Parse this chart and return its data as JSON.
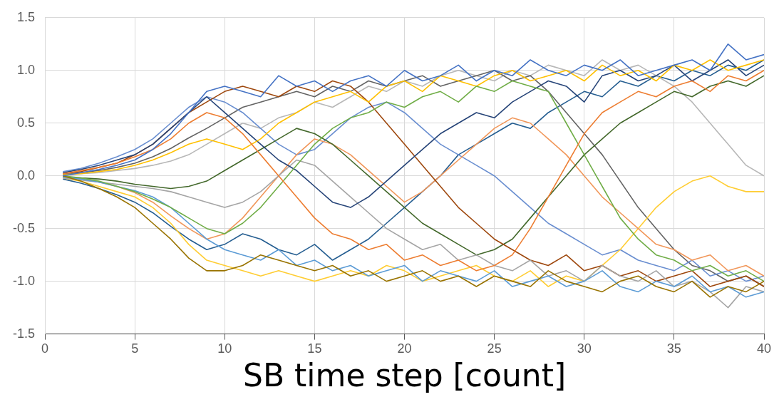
{
  "chart_data": {
    "type": "line",
    "xlabel": "SB time step [count]",
    "x": [
      1,
      2,
      3,
      4,
      5,
      6,
      7,
      8,
      9,
      10,
      11,
      12,
      13,
      14,
      15,
      16,
      17,
      18,
      19,
      20,
      21,
      22,
      23,
      24,
      25,
      26,
      27,
      28,
      29,
      30,
      31,
      32,
      33,
      34,
      35,
      36,
      37,
      38,
      39,
      40
    ],
    "xlim": [
      0,
      40
    ],
    "xticks": [
      0,
      5,
      10,
      15,
      20,
      25,
      30,
      35,
      40
    ],
    "ylim": [
      -1.5,
      1.5
    ],
    "yticks": [
      {
        "value": -1.5,
        "label": "-1.5"
      },
      {
        "value": -1,
        "label": "-1.0"
      },
      {
        "value": -0.5,
        "label": "-0.5"
      },
      {
        "value": 0,
        "label": "0.0"
      },
      {
        "value": 0.5,
        "label": "0.5"
      },
      {
        "value": 1,
        "label": "1.0"
      },
      {
        "value": 1.5,
        "label": "1.5"
      }
    ],
    "grid": true,
    "marker": "none",
    "line_style": "solid",
    "series": [
      {
        "color": "#4472c4",
        "values": [
          0,
          0.03,
          0.06,
          0.1,
          0.15,
          0.25,
          0.4,
          0.6,
          0.8,
          0.85,
          0.8,
          0.75,
          0.95,
          0.85,
          0.9,
          0.8,
          0.9,
          0.95,
          0.85,
          1.0,
          0.9,
          0.95,
          1.05,
          0.9,
          1.0,
          0.95,
          1.1,
          1.0,
          0.95,
          1.05,
          1.0,
          1.1,
          0.95,
          1.0,
          1.05,
          1.1,
          1.0,
          1.25,
          1.1,
          1.15
        ]
      },
      {
        "color": "#997300",
        "values": [
          0,
          -0.05,
          -0.12,
          -0.2,
          -0.3,
          -0.45,
          -0.6,
          -0.78,
          -0.9,
          -0.9,
          -0.85,
          -0.75,
          -0.8,
          -0.85,
          -0.9,
          -0.85,
          -0.95,
          -0.9,
          -1.0,
          -0.95,
          -0.9,
          -1.0,
          -0.95,
          -1.05,
          -0.95,
          -1.0,
          -1.05,
          -0.9,
          -1.0,
          -1.05,
          -1.1,
          -1.0,
          -0.95,
          -1.05,
          -1.1,
          -1.0,
          -1.15,
          -1.05,
          -1.1,
          -1.0
        ]
      },
      {
        "color": "#ed7d31",
        "values": [
          0.02,
          0.05,
          0.08,
          0.12,
          0.18,
          0.25,
          0.35,
          0.5,
          0.6,
          0.55,
          0.4,
          0.2,
          0.0,
          -0.2,
          -0.4,
          -0.55,
          -0.6,
          -0.7,
          -0.65,
          -0.8,
          -0.75,
          -0.85,
          -0.8,
          -0.9,
          -0.85,
          -0.75,
          -0.5,
          -0.2,
          0.1,
          0.4,
          0.6,
          0.7,
          0.8,
          0.75,
          0.85,
          0.9,
          0.8,
          0.95,
          0.9,
          1.0
        ]
      },
      {
        "color": "#70ad47",
        "values": [
          0,
          -0.02,
          -0.05,
          -0.1,
          -0.15,
          -0.22,
          -0.3,
          -0.4,
          -0.5,
          -0.55,
          -0.45,
          -0.3,
          -0.1,
          0.1,
          0.3,
          0.45,
          0.55,
          0.6,
          0.7,
          0.65,
          0.75,
          0.8,
          0.7,
          0.85,
          0.8,
          0.9,
          0.85,
          0.8,
          0.5,
          0.2,
          -0.1,
          -0.4,
          -0.6,
          -0.75,
          -0.8,
          -0.9,
          -0.85,
          -0.95,
          -0.9,
          -1.0
        ]
      },
      {
        "color": "#ffc000",
        "values": [
          0.01,
          0.02,
          0.04,
          0.06,
          0.1,
          0.15,
          0.22,
          0.3,
          0.35,
          0.3,
          0.25,
          0.35,
          0.5,
          0.6,
          0.7,
          0.75,
          0.8,
          0.7,
          0.85,
          0.9,
          0.8,
          0.95,
          0.9,
          0.85,
          0.95,
          1.0,
          0.9,
          0.95,
          1.0,
          0.9,
          1.05,
          0.95,
          1.0,
          0.9,
          1.05,
          1.0,
          1.1,
          1.0,
          1.05,
          1.1
        ]
      },
      {
        "color": "#5b9bd5",
        "values": [
          -0.01,
          -0.03,
          -0.06,
          -0.1,
          -0.14,
          -0.2,
          -0.3,
          -0.45,
          -0.6,
          -0.7,
          -0.75,
          -0.8,
          -0.7,
          -0.85,
          -0.8,
          -0.9,
          -0.85,
          -0.95,
          -0.9,
          -0.85,
          -1.0,
          -0.9,
          -0.95,
          -1.0,
          -0.9,
          -1.05,
          -1.0,
          -0.95,
          -1.05,
          -1.0,
          -0.9,
          -1.05,
          -1.1,
          -1.0,
          -1.05,
          -0.95,
          -1.1,
          -1.05,
          -1.15,
          -1.1
        ]
      },
      {
        "color": "#264478",
        "values": [
          0.03,
          0.06,
          0.1,
          0.15,
          0.2,
          0.3,
          0.45,
          0.6,
          0.75,
          0.6,
          0.45,
          0.3,
          0.15,
          0.05,
          -0.1,
          -0.25,
          -0.3,
          -0.2,
          -0.05,
          0.1,
          0.25,
          0.4,
          0.5,
          0.6,
          0.55,
          0.7,
          0.8,
          0.9,
          0.85,
          0.7,
          0.95,
          1.0,
          0.9,
          0.95,
          1.05,
          0.9,
          1.0,
          1.1,
          0.95,
          1.05
        ]
      },
      {
        "color": "#a5a5a5",
        "values": [
          -0.02,
          -0.04,
          -0.06,
          -0.08,
          -0.1,
          -0.12,
          -0.15,
          -0.2,
          -0.25,
          -0.3,
          -0.25,
          -0.15,
          0.0,
          0.15,
          0.1,
          -0.05,
          -0.2,
          -0.35,
          -0.5,
          -0.6,
          -0.7,
          -0.65,
          -0.8,
          -0.75,
          -0.85,
          -0.9,
          -0.8,
          -0.95,
          -0.9,
          -1.0,
          -0.85,
          -0.95,
          -1.0,
          -0.9,
          -1.05,
          -1.0,
          -1.1,
          -1.25,
          -1.05,
          -1.1
        ]
      },
      {
        "color": "#9e480e",
        "values": [
          0.02,
          0.04,
          0.08,
          0.12,
          0.2,
          0.3,
          0.45,
          0.6,
          0.7,
          0.8,
          0.85,
          0.8,
          0.75,
          0.85,
          0.8,
          0.9,
          0.85,
          0.7,
          0.5,
          0.3,
          0.1,
          -0.1,
          -0.3,
          -0.45,
          -0.6,
          -0.7,
          -0.8,
          -0.85,
          -0.75,
          -0.9,
          -0.85,
          -0.95,
          -0.9,
          -1.0,
          -0.95,
          -0.9,
          -1.05,
          -1.0,
          -0.95,
          -1.05
        ]
      },
      {
        "color": "#43682b",
        "values": [
          -0.01,
          -0.02,
          -0.03,
          -0.05,
          -0.08,
          -0.1,
          -0.12,
          -0.1,
          -0.05,
          0.05,
          0.15,
          0.25,
          0.35,
          0.45,
          0.4,
          0.3,
          0.15,
          0.0,
          -0.15,
          -0.3,
          -0.45,
          -0.55,
          -0.65,
          -0.75,
          -0.7,
          -0.6,
          -0.4,
          -0.2,
          0.0,
          0.2,
          0.35,
          0.5,
          0.6,
          0.7,
          0.8,
          0.75,
          0.85,
          0.9,
          0.85,
          0.95
        ]
      },
      {
        "color": "#f1975a",
        "values": [
          0,
          -0.03,
          -0.06,
          -0.1,
          -0.16,
          -0.25,
          -0.38,
          -0.5,
          -0.6,
          -0.55,
          -0.4,
          -0.2,
          0.0,
          0.2,
          0.35,
          0.3,
          0.2,
          0.05,
          -0.1,
          -0.25,
          -0.15,
          0.0,
          0.15,
          0.3,
          0.45,
          0.55,
          0.5,
          0.35,
          0.2,
          0.0,
          -0.2,
          -0.35,
          -0.5,
          -0.65,
          -0.7,
          -0.8,
          -0.75,
          -0.9,
          -0.85,
          -0.95
        ]
      },
      {
        "color": "#ffcd33",
        "values": [
          -0.02,
          -0.05,
          -0.1,
          -0.15,
          -0.2,
          -0.3,
          -0.45,
          -0.65,
          -0.8,
          -0.85,
          -0.9,
          -0.95,
          -0.9,
          -0.95,
          -1.0,
          -0.95,
          -0.9,
          -0.95,
          -0.85,
          -0.9,
          -1.0,
          -0.95,
          -0.9,
          -0.85,
          -0.95,
          -1.0,
          -0.9,
          -1.05,
          -0.95,
          -1.0,
          -0.85,
          -0.7,
          -0.5,
          -0.3,
          -0.15,
          -0.05,
          0.0,
          -0.1,
          -0.15,
          -0.15
        ]
      },
      {
        "color": "#698ed0",
        "values": [
          0.04,
          0.07,
          0.12,
          0.18,
          0.25,
          0.35,
          0.5,
          0.65,
          0.75,
          0.7,
          0.6,
          0.45,
          0.3,
          0.2,
          0.25,
          0.4,
          0.55,
          0.65,
          0.7,
          0.6,
          0.45,
          0.3,
          0.2,
          0.1,
          0.0,
          -0.15,
          -0.3,
          -0.45,
          -0.55,
          -0.65,
          -0.75,
          -0.7,
          -0.8,
          -0.85,
          -0.9,
          -0.8,
          -0.95,
          -0.9,
          -1.0,
          -0.95
        ]
      },
      {
        "color": "#636363",
        "values": [
          0.01,
          0.03,
          0.05,
          0.08,
          0.12,
          0.18,
          0.26,
          0.36,
          0.45,
          0.55,
          0.65,
          0.7,
          0.75,
          0.8,
          0.75,
          0.85,
          0.8,
          0.9,
          0.85,
          0.9,
          0.95,
          0.85,
          0.9,
          0.95,
          1.0,
          0.9,
          0.95,
          0.8,
          0.6,
          0.4,
          0.2,
          -0.05,
          -0.3,
          -0.5,
          -0.7,
          -0.85,
          -0.9,
          -1.0,
          -0.95,
          -1.05
        ]
      },
      {
        "color": "#b7b7b7",
        "values": [
          0,
          0.02,
          0.03,
          0.05,
          0.07,
          0.1,
          0.14,
          0.2,
          0.3,
          0.4,
          0.5,
          0.45,
          0.55,
          0.6,
          0.7,
          0.65,
          0.75,
          0.85,
          0.8,
          0.9,
          0.85,
          0.95,
          1.0,
          0.95,
          0.9,
          1.0,
          0.95,
          1.05,
          1.0,
          0.95,
          1.1,
          1.0,
          1.05,
          0.95,
          0.85,
          0.7,
          0.5,
          0.3,
          0.1,
          0.0
        ]
      },
      {
        "color": "#255e91",
        "values": [
          -0.03,
          -0.07,
          -0.12,
          -0.18,
          -0.25,
          -0.35,
          -0.48,
          -0.6,
          -0.7,
          -0.65,
          -0.55,
          -0.6,
          -0.7,
          -0.75,
          -0.65,
          -0.8,
          -0.7,
          -0.6,
          -0.45,
          -0.3,
          -0.15,
          0.0,
          0.2,
          0.3,
          0.4,
          0.5,
          0.45,
          0.6,
          0.7,
          0.8,
          0.75,
          0.9,
          0.85,
          0.95,
          0.9,
          1.0,
          0.95,
          1.05,
          1.0,
          1.1
        ]
      }
    ]
  }
}
